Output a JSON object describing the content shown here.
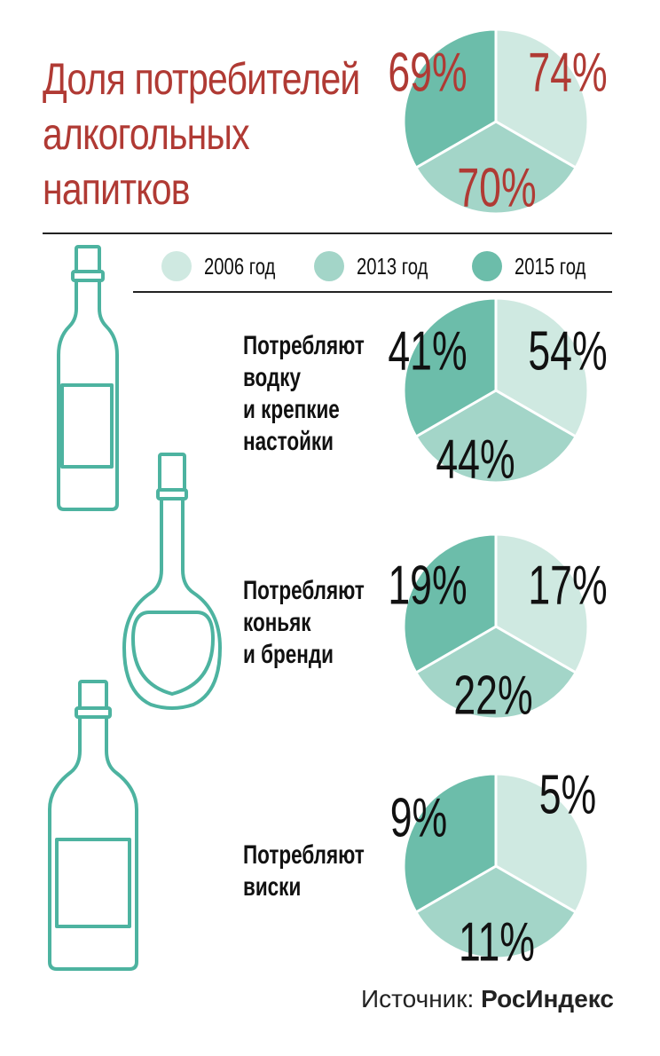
{
  "title_lines": [
    "Доля потребителей",
    "алкогольных",
    "напитков"
  ],
  "legend": [
    {
      "label": "2006 год",
      "color": "#cfe9e1"
    },
    {
      "label": "2013 год",
      "color": "#a3d5c8"
    },
    {
      "label": "2015 год",
      "color": "#6cbdaa"
    }
  ],
  "categories": [
    {
      "label_lines": [
        "Потребляют",
        "водку",
        "и крепкие",
        "настойки"
      ]
    },
    {
      "label_lines": [
        "Потребляют",
        "коньяк",
        "и бренди"
      ]
    },
    {
      "label_lines": [
        "Потребляют",
        "виски"
      ]
    }
  ],
  "source": {
    "prefix": "Источник:",
    "name": "РосИндекс"
  },
  "colors": {
    "title": "#b03a34",
    "outline": "#4db3a0",
    "value_dark": "#111111",
    "value_red": "#b03a34"
  },
  "chart_data": [
    {
      "type": "pie",
      "title": "Доля потребителей алкогольных напитков",
      "labels": [
        "2006 год",
        "2013 год",
        "2015 год"
      ],
      "values": [
        74,
        70,
        69
      ],
      "value_labels": [
        "74%",
        "70%",
        "69%"
      ]
    },
    {
      "type": "pie",
      "title": "Потребляют водку и крепкие настойки",
      "labels": [
        "2006 год",
        "2013 год",
        "2015 год"
      ],
      "values": [
        54,
        44,
        41
      ],
      "value_labels": [
        "54%",
        "44%",
        "41%"
      ]
    },
    {
      "type": "pie",
      "title": "Потребляют коньяк и бренди",
      "labels": [
        "2006 год",
        "2013 год",
        "2015 год"
      ],
      "values": [
        17,
        22,
        19
      ],
      "value_labels": [
        "17%",
        "22%",
        "19%"
      ]
    },
    {
      "type": "pie",
      "title": "Потребляют виски",
      "labels": [
        "2006 год",
        "2013 год",
        "2015 год"
      ],
      "values": [
        5,
        11,
        9
      ],
      "value_labels": [
        "5%",
        "11%",
        "9%"
      ]
    }
  ]
}
